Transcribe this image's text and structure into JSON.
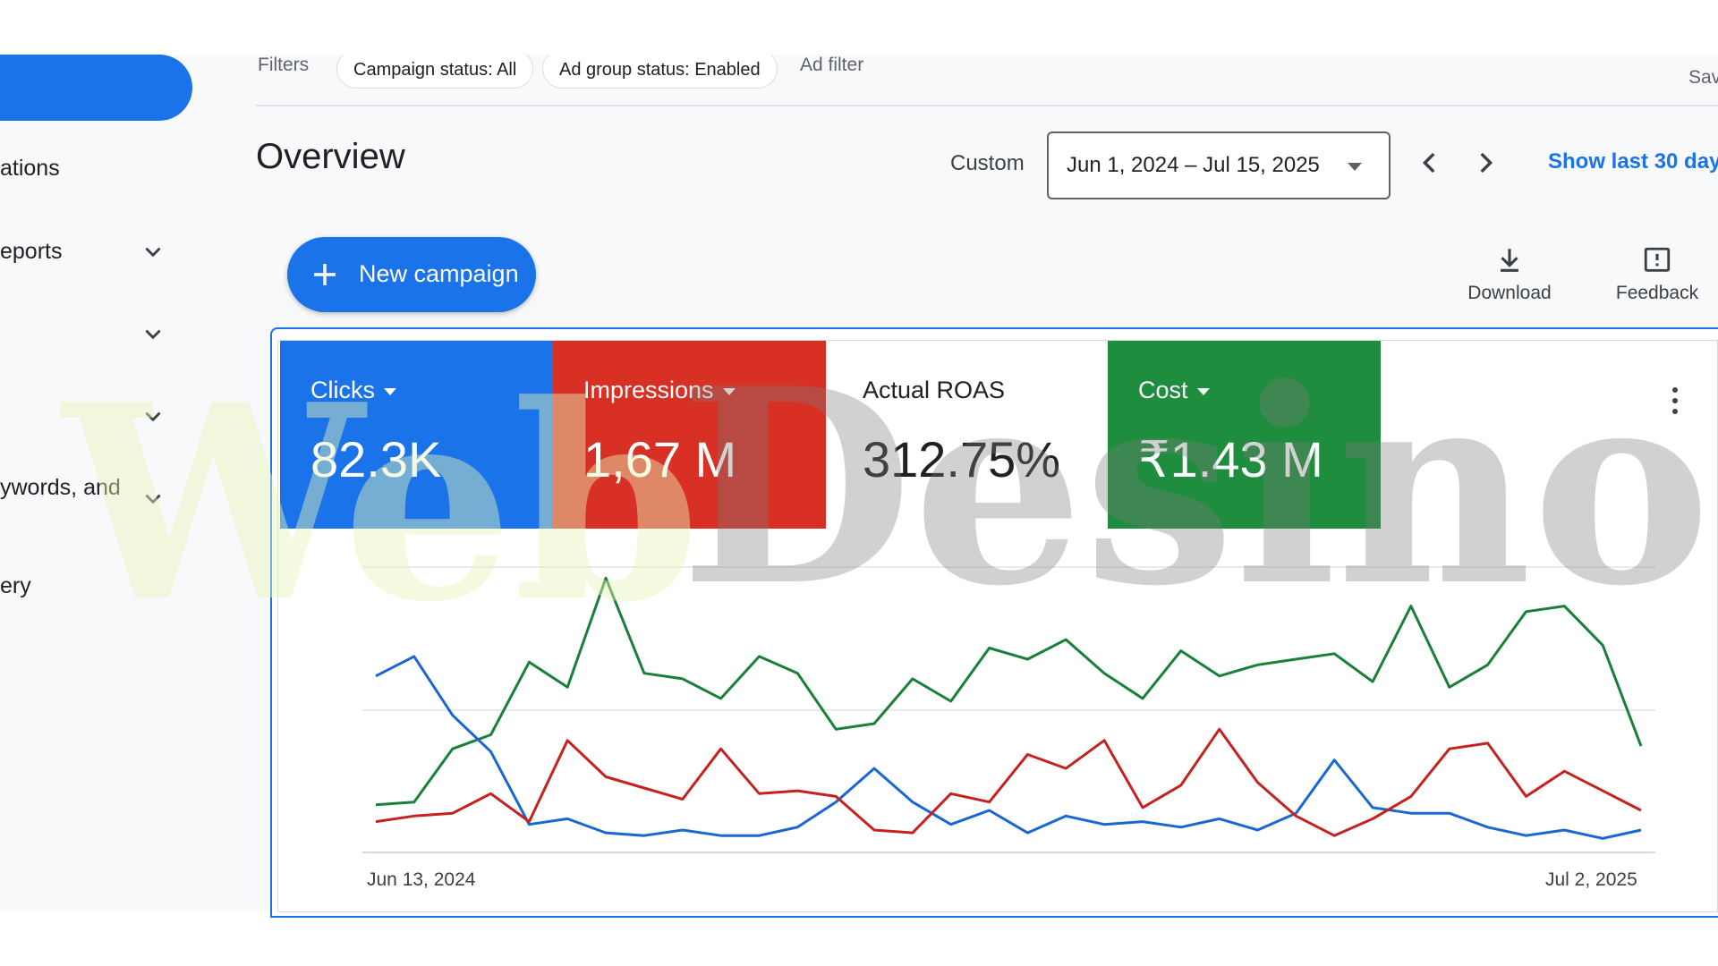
{
  "sidebar": {
    "items": [
      {
        "label": "ations",
        "has_chevron": false
      },
      {
        "label": "eports",
        "has_chevron": true
      },
      {
        "label": "",
        "has_chevron": true
      },
      {
        "label": "",
        "has_chevron": true
      },
      {
        "label": "ywords, and",
        "has_chevron": true
      },
      {
        "label": "ery",
        "has_chevron": false
      }
    ]
  },
  "filterbar": {
    "filters_label": "Filters",
    "chips": [
      "Campaign status: All",
      "Ad group status: Enabled"
    ],
    "ad_filter_label": "Ad filter",
    "save_label": "Sav"
  },
  "overview": {
    "title": "Overview",
    "range_type": "Custom",
    "date_range": "Jun 1, 2024 – Jul 15, 2025",
    "show_last_label": "Show last 30 days",
    "new_campaign_label": "New campaign",
    "download_label": "Download",
    "feedback_label": "Feedback"
  },
  "metrics": [
    {
      "label": "Clicks",
      "value": "82.3K",
      "color": "#1a73e8",
      "dropdown": true
    },
    {
      "label": "Impressions",
      "value": "1,67 M",
      "color": "#d93025",
      "dropdown": true
    },
    {
      "label": "Actual ROAS",
      "value": "312.75%",
      "color": "#ffffff",
      "dropdown": false
    },
    {
      "label": "Cost",
      "value": "₹1.43 M",
      "color": "#1e8e3e",
      "dropdown": true
    }
  ],
  "chart_data": {
    "type": "line",
    "x_start_label": "Jun 13, 2024",
    "x_end_label": "Jul 2, 2025",
    "grid": true,
    "ylim": [
      0,
      100
    ],
    "series": [
      {
        "name": "Cost",
        "color": "#188038",
        "values": [
          17,
          18,
          37,
          42,
          68,
          59,
          98,
          64,
          62,
          55,
          70,
          64,
          44,
          46,
          62,
          54,
          73,
          69,
          76,
          64,
          55,
          72,
          63,
          67,
          69,
          71,
          61,
          88,
          59,
          67,
          86,
          88,
          74,
          38
        ]
      },
      {
        "name": "Clicks",
        "color": "#1967d2",
        "values": [
          63,
          70,
          49,
          36,
          10,
          12,
          7,
          6,
          8,
          6,
          6,
          9,
          18,
          30,
          18,
          10,
          15,
          7,
          13,
          10,
          11,
          9,
          12,
          8,
          14,
          33,
          16,
          14,
          14,
          9,
          6,
          8,
          5,
          8
        ]
      },
      {
        "name": "Impressions",
        "color": "#c5221f",
        "values": [
          11,
          13,
          14,
          21,
          11,
          40,
          27,
          23,
          19,
          37,
          21,
          22,
          20,
          8,
          7,
          21,
          18,
          35,
          30,
          40,
          16,
          24,
          44,
          25,
          13,
          6,
          12,
          20,
          37,
          39,
          20,
          29,
          22,
          15
        ]
      }
    ]
  },
  "watermark": {
    "text_web": "Web",
    "text_desino": "Desino"
  }
}
